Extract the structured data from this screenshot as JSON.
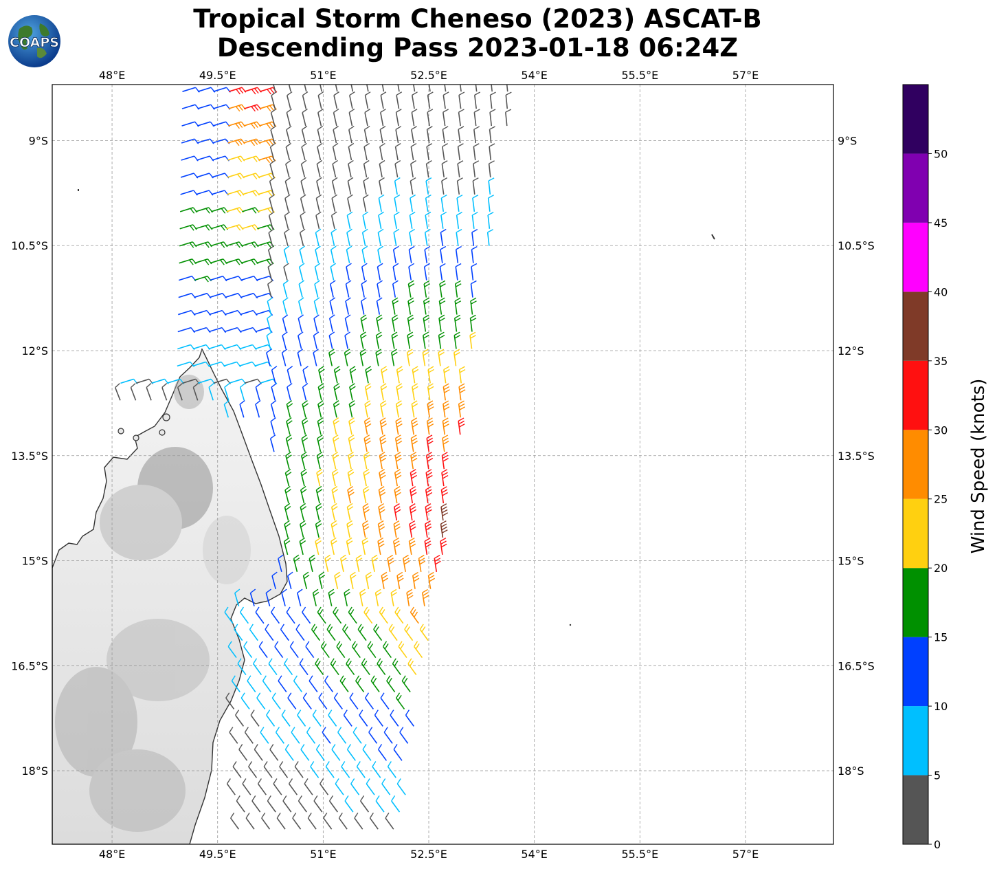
{
  "header": {
    "title_line1": "Tropical Storm Cheneso (2023) ASCAT-B",
    "title_line2": "Descending Pass 2023-01-18 06:24Z",
    "logo_text": "COAPS"
  },
  "map": {
    "lon_range": [
      47.15,
      58.25
    ],
    "lat_range": [
      -19.05,
      -8.2
    ],
    "lon_ticks": [
      "48°E",
      "49.5°E",
      "51°E",
      "52.5°E",
      "54°E",
      "55.5°E",
      "57°E"
    ],
    "lon_tick_values": [
      48,
      49.5,
      51,
      52.5,
      54,
      55.5,
      57
    ],
    "lat_ticks": [
      "9°S",
      "10.5°S",
      "12°S",
      "13.5°S",
      "15°S",
      "16.5°S",
      "18°S"
    ],
    "lat_tick_values": [
      -9,
      -10.5,
      -12,
      -13.5,
      -15,
      -16.5,
      -18
    ],
    "gridlines": true,
    "land_color": "#e8e8e8",
    "coast_color": "#333333"
  },
  "colorbar": {
    "label": "Wind Speed (knots)",
    "tick_labels": [
      "0",
      "5",
      "10",
      "15",
      "20",
      "25",
      "30",
      "35",
      "40",
      "45",
      "50"
    ],
    "bins": [
      {
        "min": 0,
        "max": 5,
        "color": "#555555"
      },
      {
        "min": 5,
        "max": 10,
        "color": "#00bfff"
      },
      {
        "min": 10,
        "max": 15,
        "color": "#0040ff"
      },
      {
        "min": 15,
        "max": 20,
        "color": "#009000"
      },
      {
        "min": 20,
        "max": 25,
        "color": "#ffd010"
      },
      {
        "min": 25,
        "max": 30,
        "color": "#ff8c00"
      },
      {
        "min": 30,
        "max": 35,
        "color": "#ff1010"
      },
      {
        "min": 35,
        "max": 40,
        "color": "#7f3a28"
      },
      {
        "min": 40,
        "max": 45,
        "color": "#ff00ff"
      },
      {
        "min": 45,
        "max": 50,
        "color": "#8000b0"
      },
      {
        "min": 50,
        "max": 55,
        "color": "#300060"
      }
    ]
  }
}
